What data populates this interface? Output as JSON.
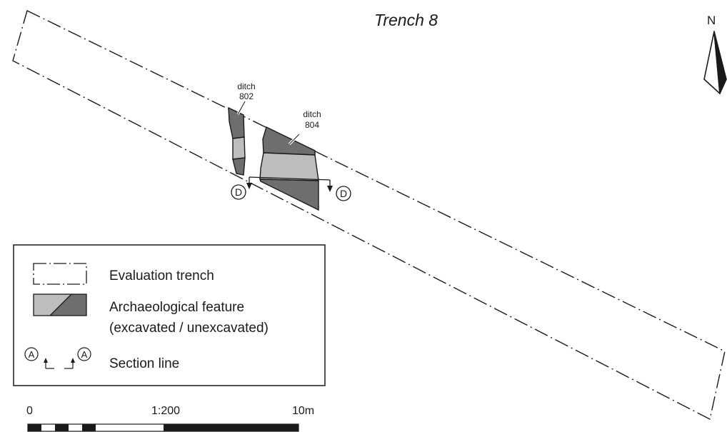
{
  "title": "Trench 8",
  "north_arrow": {
    "label": "N",
    "icon": "north-arrow-icon"
  },
  "features": [
    {
      "name_line": "ditch",
      "number": "802"
    },
    {
      "name_line": "ditch",
      "number": "804"
    }
  ],
  "section": {
    "label": "D"
  },
  "legend": {
    "items": [
      {
        "icon": "dash-dot-rectangle-icon",
        "label": "Evaluation trench"
      },
      {
        "icon": "two-tone-feature-swatch-icon",
        "label": "Archaeological feature",
        "label_line2": "(excavated / unexcavated)"
      },
      {
        "icon": "section-line-symbol-icon",
        "label": "Section line",
        "marker": "A"
      }
    ]
  },
  "scale_bar": {
    "start_label": "0",
    "ratio_label": "1:200",
    "end_label": "10m"
  },
  "colors": {
    "unexcavated": "#6e6e6e",
    "excavated": "#bdbdbd",
    "line": "#1a1a1a",
    "background": "#ffffff"
  }
}
